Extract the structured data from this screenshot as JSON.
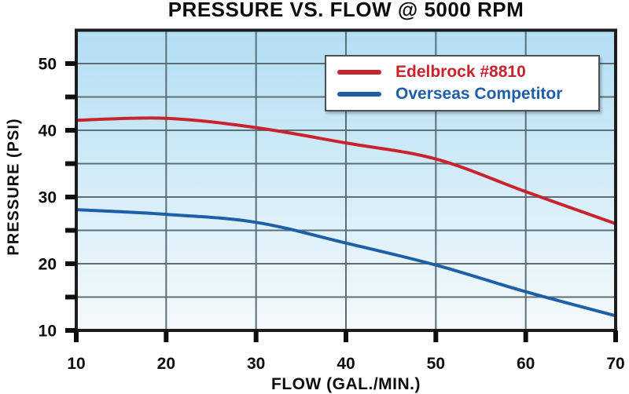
{
  "chart_data": {
    "type": "line",
    "title": "PRESSURE VS. FLOW @ 5000 RPM",
    "xlabel": "FLOW (GAL./MIN.)",
    "ylabel": "PRESSURE (PSI)",
    "x": [
      10,
      20,
      30,
      40,
      50,
      60,
      70
    ],
    "xlim": [
      10,
      70
    ],
    "ylim": [
      10,
      55
    ],
    "x_tick_step": 10,
    "y_tick_step": 5,
    "y_label_step": 10,
    "x_tick_labels": [
      "10",
      "20",
      "30",
      "40",
      "50",
      "60",
      "70"
    ],
    "y_tick_labels": [
      "10",
      "20",
      "30",
      "40",
      "50"
    ],
    "grid": true,
    "legend_position": "top-right",
    "series": [
      {
        "name": "Edelbrock #8810",
        "color": "#c8242f",
        "values": [
          41.5,
          41.8,
          40.4,
          38.1,
          35.7,
          30.8,
          26.0
        ]
      },
      {
        "name": "Overseas Competitor",
        "color": "#1f5fa8",
        "values": [
          28.1,
          27.4,
          26.2,
          23.1,
          19.8,
          15.8,
          12.2
        ]
      }
    ],
    "colors": {
      "plot_bg_top": "#b2def3",
      "plot_bg_bottom": "#f5fafc",
      "gridline": "#5c6e76",
      "border": "#1c1c1c",
      "tick": "#0d0d0d",
      "text": "#0d0d0d"
    }
  }
}
